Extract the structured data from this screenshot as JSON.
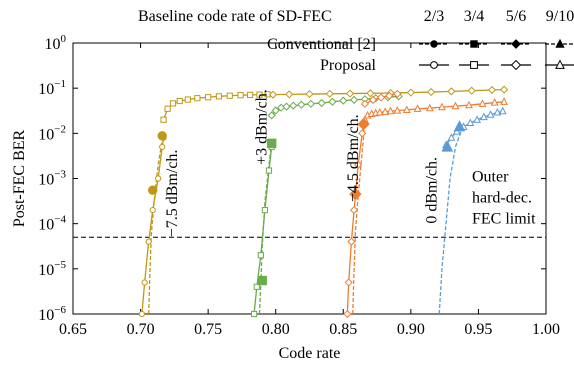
{
  "chart_data": {
    "type": "line",
    "title": "",
    "xlabel": "Code rate",
    "ylabel": "Post-FEC BER",
    "xlim": [
      0.65,
      1.0
    ],
    "ylim_log10": [
      -6,
      0
    ],
    "y_scale": "log",
    "grid": false,
    "x_ticks": [
      {
        "v": 0.65,
        "label": "0.65"
      },
      {
        "v": 0.7,
        "label": "0.70"
      },
      {
        "v": 0.75,
        "label": "0.75"
      },
      {
        "v": 0.8,
        "label": "0.80"
      },
      {
        "v": 0.85,
        "label": "0.85"
      },
      {
        "v": 0.9,
        "label": "0.90"
      },
      {
        "v": 0.95,
        "label": "0.95"
      },
      {
        "v": 1.0,
        "label": "1.00"
      }
    ],
    "y_ticks": [
      {
        "e": 0,
        "base": "10",
        "exp": "0"
      },
      {
        "e": -1,
        "base": "10",
        "exp": "−1"
      },
      {
        "e": -2,
        "base": "10",
        "exp": "−2"
      },
      {
        "e": -3,
        "base": "10",
        "exp": "−3"
      },
      {
        "e": -4,
        "base": "10",
        "exp": "−4"
      },
      {
        "e": -5,
        "base": "10",
        "exp": "−5"
      },
      {
        "e": -6,
        "base": "10",
        "exp": "−6"
      }
    ],
    "legend": {
      "header": "Baseline code rate of SD-FEC",
      "rates": [
        "2/3",
        "3/4",
        "5/6",
        "9/10"
      ],
      "rows": [
        "Conventional [2]",
        "Proposal"
      ],
      "placement": "top-right"
    },
    "threshold": {
      "y": 5e-05,
      "label_lines": [
        "Outer",
        "hard-dec.",
        "FEC limit"
      ]
    },
    "annotations": [
      {
        "text": "−7.5 dBm/ch.",
        "x": 0.727,
        "y": 5e-05
      },
      {
        "text": "+3 dBm/ch.",
        "x": 0.793,
        "y": 0.002
      },
      {
        "text": "−4.5 dBm/ch.",
        "x": 0.861,
        "y": 0.0003
      },
      {
        "text": "0 dBm/ch.",
        "x": 0.919,
        "y": 0.0001
      }
    ],
    "series": [
      {
        "rate": "2/3",
        "kind": "conventional",
        "color": "#c09818",
        "marker": "circle",
        "x": [
          0.706,
          0.707,
          0.708,
          0.71,
          0.713,
          0.716,
          0.717
        ],
        "y": [
          1e-06,
          1e-05,
          6e-05,
          0.0003,
          0.002,
          0.007,
          0.009
        ]
      },
      {
        "rate": "2/3",
        "kind": "proposal",
        "color": "#c09818",
        "marker": "circle",
        "x": [
          0.701,
          0.703,
          0.706,
          0.709,
          0.713,
          0.716,
          0.717
        ],
        "y": [
          1e-06,
          5e-06,
          4e-05,
          0.0002,
          0.001,
          0.005,
          0.008
        ]
      },
      {
        "rate": "2/3",
        "kind": "proposal",
        "color": "#c09818",
        "marker": "square",
        "x": [
          0.717,
          0.72,
          0.724,
          0.729,
          0.735,
          0.742,
          0.75,
          0.758,
          0.766,
          0.774,
          0.781,
          0.788,
          0.794
        ],
        "y": [
          0.02,
          0.035,
          0.046,
          0.052,
          0.056,
          0.06,
          0.063,
          0.066,
          0.068,
          0.07,
          0.071,
          0.072,
          0.073
        ]
      },
      {
        "rate": "3/4",
        "kind": "conventional",
        "color": "#6aab4a",
        "marker": "square",
        "x": [
          0.788,
          0.789,
          0.79,
          0.792,
          0.795,
          0.797
        ],
        "y": [
          1e-06,
          5e-06,
          3e-05,
          0.0003,
          0.002,
          0.006
        ]
      },
      {
        "rate": "3/4",
        "kind": "proposal",
        "color": "#6aab4a",
        "marker": "square",
        "x": [
          0.784,
          0.786,
          0.789,
          0.792,
          0.795,
          0.797
        ],
        "y": [
          1e-06,
          4e-06,
          2e-05,
          0.0002,
          0.0015,
          0.005
        ]
      },
      {
        "rate": "3/4",
        "kind": "proposal",
        "color": "#6aab4a",
        "marker": "diamond",
        "x": [
          0.797,
          0.8,
          0.804,
          0.808,
          0.813,
          0.819,
          0.826,
          0.834,
          0.842,
          0.85,
          0.858,
          0.866,
          0.874,
          0.883,
          0.891
        ],
        "y": [
          0.025,
          0.032,
          0.037,
          0.039,
          0.041,
          0.043,
          0.045,
          0.047,
          0.05,
          0.053,
          0.055,
          0.057,
          0.06,
          0.063,
          0.066
        ]
      },
      {
        "rate": "5/6",
        "kind": "conventional",
        "color": "#ed7d31",
        "marker": "diamond",
        "x": [
          0.857,
          0.858,
          0.859,
          0.861,
          0.864,
          0.866
        ],
        "y": [
          1e-06,
          1e-05,
          7e-05,
          0.0004,
          0.004,
          0.016
        ]
      },
      {
        "rate": "5/6",
        "kind": "proposal",
        "color": "#ed7d31",
        "marker": "diamond",
        "x": [
          0.853,
          0.854,
          0.856,
          0.858,
          0.861,
          0.864,
          0.866
        ],
        "y": [
          1e-06,
          5e-06,
          4e-05,
          0.0002,
          0.002,
          0.01,
          0.016
        ]
      },
      {
        "rate": "5/6",
        "kind": "proposal",
        "color": "#ed7d31",
        "marker": "triangle",
        "x": [
          0.866,
          0.868,
          0.871,
          0.874,
          0.877,
          0.881,
          0.885,
          0.89,
          0.897,
          0.905,
          0.914,
          0.923,
          0.933,
          0.943,
          0.953,
          0.962,
          0.969
        ],
        "y": [
          0.02,
          0.025,
          0.027,
          0.028,
          0.029,
          0.03,
          0.031,
          0.032,
          0.033,
          0.035,
          0.036,
          0.038,
          0.04,
          0.042,
          0.045,
          0.048,
          0.05
        ]
      },
      {
        "rate": "9/10",
        "kind": "conventional",
        "color": "#5b9bd5",
        "marker": "triangle",
        "x": [
          0.921,
          0.923,
          0.926,
          0.929,
          0.933,
          0.938
        ],
        "y": [
          1e-06,
          1e-05,
          0.0001,
          0.001,
          0.005,
          0.013
        ]
      },
      {
        "rate": "9/10",
        "kind": "proposal",
        "color": "#5b9bd5",
        "marker": "triangle",
        "x": [
          0.926,
          0.93,
          0.934,
          0.939,
          0.944,
          0.949,
          0.954,
          0.959,
          0.964,
          0.968
        ],
        "y": [
          0.0055,
          0.008,
          0.011,
          0.014,
          0.017,
          0.02,
          0.023,
          0.026,
          0.029,
          0.031
        ]
      },
      {
        "rate": "2/3",
        "kind": "proposal-upper",
        "color": "#c09818",
        "marker": "diamond",
        "x": [
          0.798,
          0.81,
          0.825,
          0.84,
          0.855,
          0.87,
          0.885,
          0.9,
          0.915,
          0.93,
          0.945,
          0.96,
          0.969
        ],
        "y": [
          0.072,
          0.073,
          0.074,
          0.075,
          0.076,
          0.077,
          0.078,
          0.08,
          0.082,
          0.085,
          0.088,
          0.091,
          0.093
        ]
      },
      {
        "rate": "5/6",
        "kind": "proposal-upper",
        "color": "#ed7d31",
        "marker": "diamond",
        "x": [
          0.866,
          0.872,
          0.878,
          0.884,
          0.89
        ],
        "y": [
          0.045,
          0.055,
          0.062,
          0.068,
          0.075
        ]
      }
    ],
    "big_markers": [
      {
        "color": "#c09818",
        "marker": "circle",
        "points": [
          [
            0.709,
            0.00055
          ],
          [
            0.716,
            0.0088
          ]
        ]
      },
      {
        "color": "#6aab4a",
        "marker": "square",
        "points": [
          [
            0.79,
            5.5e-06
          ],
          [
            0.797,
            0.006
          ]
        ]
      },
      {
        "color": "#ed7d31",
        "marker": "diamond",
        "points": [
          [
            0.859,
            0.00045
          ],
          [
            0.865,
            0.016
          ]
        ]
      },
      {
        "color": "#5b9bd5",
        "marker": "triangle",
        "points": [
          [
            0.927,
            0.005
          ],
          [
            0.936,
            0.014
          ]
        ]
      }
    ]
  }
}
